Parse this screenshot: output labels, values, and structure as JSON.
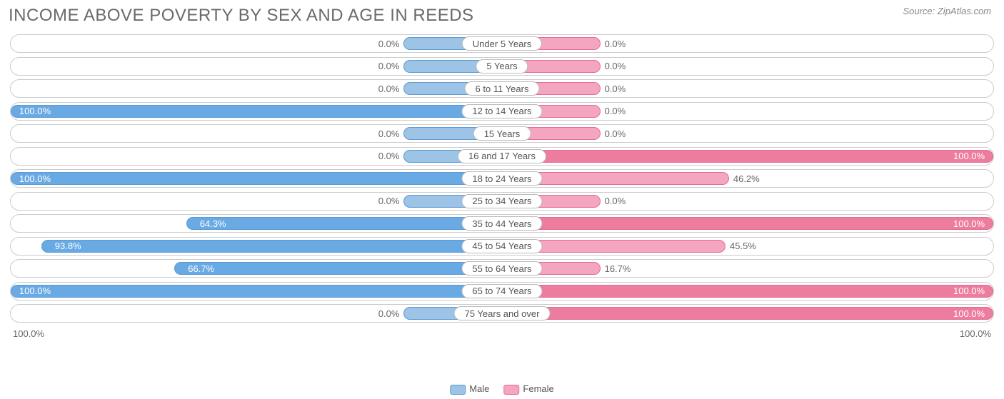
{
  "title": "INCOME ABOVE POVERTY BY SEX AND AGE IN REEDS",
  "source": "Source: ZipAtlas.com",
  "colors": {
    "male_fill": "#9dc3e6",
    "male_border": "#5b9bd5",
    "male_full_fill": "#6aaae4",
    "female_fill": "#f4a6c0",
    "female_border": "#e86a94",
    "female_full_fill": "#ed7d9e",
    "text_inside": "#ffffff",
    "text_outside": "#666666",
    "row_border": "#cccccc"
  },
  "axis": {
    "left": "100.0%",
    "right": "100.0%"
  },
  "legend": {
    "male": "Male",
    "female": "Female"
  },
  "min_bar_pct": 20,
  "rows": [
    {
      "label": "Under 5 Years",
      "male": 0.0,
      "female": 0.0
    },
    {
      "label": "5 Years",
      "male": 0.0,
      "female": 0.0
    },
    {
      "label": "6 to 11 Years",
      "male": 0.0,
      "female": 0.0
    },
    {
      "label": "12 to 14 Years",
      "male": 100.0,
      "female": 0.0
    },
    {
      "label": "15 Years",
      "male": 0.0,
      "female": 0.0
    },
    {
      "label": "16 and 17 Years",
      "male": 0.0,
      "female": 100.0
    },
    {
      "label": "18 to 24 Years",
      "male": 100.0,
      "female": 46.2
    },
    {
      "label": "25 to 34 Years",
      "male": 0.0,
      "female": 0.0
    },
    {
      "label": "35 to 44 Years",
      "male": 64.3,
      "female": 100.0
    },
    {
      "label": "45 to 54 Years",
      "male": 93.8,
      "female": 45.5
    },
    {
      "label": "55 to 64 Years",
      "male": 66.7,
      "female": 16.7
    },
    {
      "label": "65 to 74 Years",
      "male": 100.0,
      "female": 100.0
    },
    {
      "label": "75 Years and over",
      "male": 0.0,
      "female": 100.0
    }
  ]
}
